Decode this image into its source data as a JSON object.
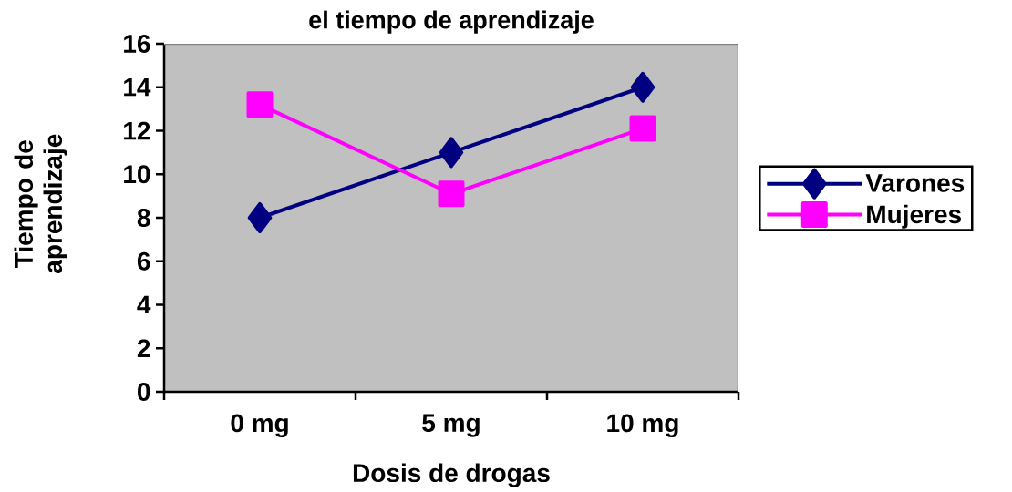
{
  "chart_data": {
    "type": "line",
    "title": "el tiempo de aprendizaje",
    "xlabel": "Dosis de drogas",
    "ylabel": "Tiempo de aprendizaje",
    "categories": [
      "0 mg",
      "5 mg",
      "10 mg"
    ],
    "series": [
      {
        "name": "Varones",
        "color": "#000080",
        "marker": "diamond",
        "values": [
          8,
          11,
          14
        ]
      },
      {
        "name": "Mujeres",
        "color": "#ff00ff",
        "marker": "square",
        "values": [
          13.2,
          9.1,
          12.1
        ]
      }
    ],
    "ylim": [
      0,
      16
    ],
    "yticks": [
      0,
      2,
      4,
      6,
      8,
      10,
      12,
      14,
      16
    ],
    "legend": "right",
    "line_style": "solid"
  }
}
